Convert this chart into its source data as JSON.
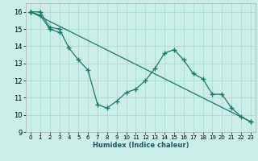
{
  "xlabel": "Humidex (Indice chaleur)",
  "bg_color": "#cceee8",
  "grid_color": "#aaddcc",
  "line_color": "#1a7a6a",
  "xlim": [
    -0.5,
    23.5
  ],
  "ylim": [
    9,
    16.5
  ],
  "yticks": [
    9,
    10,
    11,
    12,
    13,
    14,
    15,
    16
  ],
  "xticks": [
    0,
    1,
    2,
    3,
    4,
    5,
    6,
    7,
    8,
    9,
    10,
    11,
    12,
    13,
    14,
    15,
    16,
    17,
    18,
    19,
    20,
    21,
    22,
    23
  ],
  "series1_x": [
    0,
    1,
    2,
    3,
    4,
    5,
    6,
    7,
    8,
    9,
    10,
    11,
    12,
    13,
    14,
    15,
    16,
    17,
    18,
    19,
    20,
    21,
    22,
    23
  ],
  "series1_y": [
    16.0,
    16.0,
    15.1,
    15.0,
    13.9,
    13.2,
    12.6,
    10.6,
    10.4,
    10.8,
    11.3,
    11.5,
    12.0,
    12.7,
    13.6,
    13.8,
    13.2,
    12.4,
    12.1,
    11.2,
    11.2,
    10.4,
    9.9,
    9.6
  ],
  "series2_x": [
    0,
    1,
    2,
    3
  ],
  "series2_y": [
    16.0,
    15.8,
    15.0,
    14.8
  ],
  "series3_x": [
    0,
    23
  ],
  "series3_y": [
    16.0,
    9.6
  ]
}
